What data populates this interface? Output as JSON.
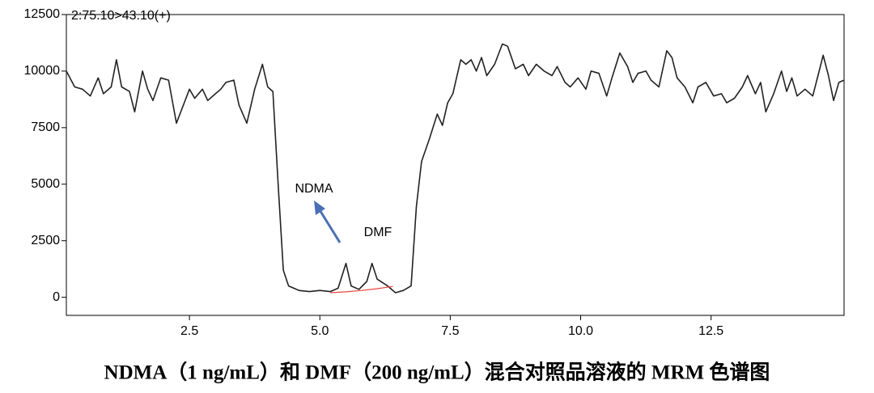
{
  "chart_data": {
    "type": "line",
    "trace_label": "2:75.10>43.10(+)",
    "caption": "NDMA（1 ng/mL）和 DMF（200 ng/mL）混合对照品溶液的 MRM 色谱图",
    "annotations": [
      "NDMA",
      "DMF"
    ],
    "xlim": [
      0.14,
      15.05
    ],
    "ylim": [
      -800,
      12500
    ],
    "xticks": [
      2.5,
      {
        "value": 5,
        "label": "5.0"
      },
      7.5,
      {
        "value": 10,
        "label": "10.0"
      },
      12.5
    ],
    "yticks": [
      0,
      2500,
      5000,
      7500,
      10000,
      12500
    ],
    "series": [
      {
        "color": "#222222",
        "x": [
          0.14,
          0.3,
          0.45,
          0.6,
          0.75,
          0.85,
          1.0,
          1.1,
          1.2,
          1.35,
          1.45,
          1.6,
          1.7,
          1.8,
          1.95,
          2.1,
          2.25,
          2.4,
          2.5,
          2.6,
          2.75,
          2.85,
          3.0,
          3.1,
          3.2,
          3.35,
          3.45,
          3.6,
          3.75,
          3.9,
          4.0,
          4.1,
          4.2,
          4.3,
          4.4,
          4.5,
          4.6,
          4.8,
          5.0,
          5.2,
          5.35,
          5.5,
          5.6,
          5.75,
          5.9,
          6.0,
          6.1,
          6.3,
          6.45,
          6.6,
          6.75,
          6.85,
          6.95,
          7.1,
          7.25,
          7.35,
          7.45,
          7.55,
          7.7,
          7.8,
          7.9,
          8.0,
          8.1,
          8.2,
          8.35,
          8.5,
          8.6,
          8.75,
          8.9,
          9.0,
          9.15,
          9.3,
          9.45,
          9.55,
          9.7,
          9.8,
          9.95,
          10.1,
          10.2,
          10.35,
          10.5,
          10.6,
          10.75,
          10.9,
          11.0,
          11.1,
          11.25,
          11.35,
          11.5,
          11.65,
          11.75,
          11.85,
          12.0,
          12.15,
          12.25,
          12.4,
          12.55,
          12.7,
          12.8,
          12.95,
          13.1,
          13.2,
          13.35,
          13.45,
          13.55,
          13.7,
          13.85,
          13.95,
          14.05,
          14.15,
          14.3,
          14.45,
          14.55,
          14.65,
          14.75,
          14.85,
          14.95,
          15.05
        ],
        "values": [
          10000,
          9300,
          9200,
          8900,
          9700,
          9000,
          9300,
          10500,
          9300,
          9100,
          8200,
          10000,
          9200,
          8700,
          9700,
          9600,
          7700,
          8600,
          9200,
          8800,
          9200,
          8700,
          9000,
          9200,
          9500,
          9600,
          8500,
          7700,
          9200,
          10300,
          9300,
          9100,
          5000,
          1200,
          500,
          400,
          300,
          250,
          300,
          250,
          400,
          1500,
          500,
          350,
          700,
          1500,
          800,
          500,
          200,
          300,
          500,
          4000,
          6000,
          7000,
          8100,
          7600,
          8600,
          9000,
          10500,
          10300,
          10500,
          10000,
          10600,
          9800,
          10300,
          11200,
          11100,
          10100,
          10300,
          9800,
          10300,
          10000,
          9800,
          10200,
          9500,
          9300,
          9700,
          9200,
          10000,
          9900,
          8900,
          9700,
          10800,
          10200,
          9500,
          9900,
          10000,
          9600,
          9300,
          10900,
          10600,
          9700,
          9300,
          8600,
          9300,
          9500,
          8900,
          9000,
          8600,
          8800,
          9300,
          9800,
          9000,
          9500,
          8200,
          9000,
          10000,
          9100,
          9700,
          8900,
          9200,
          8900,
          9800,
          10700,
          9800,
          8700,
          9500,
          9600
        ]
      },
      {
        "color": "#e8453c",
        "x": [
          5.2,
          5.5,
          5.8,
          6.1,
          6.4
        ],
        "values": [
          200,
          240,
          300,
          380,
          480
        ]
      }
    ]
  }
}
